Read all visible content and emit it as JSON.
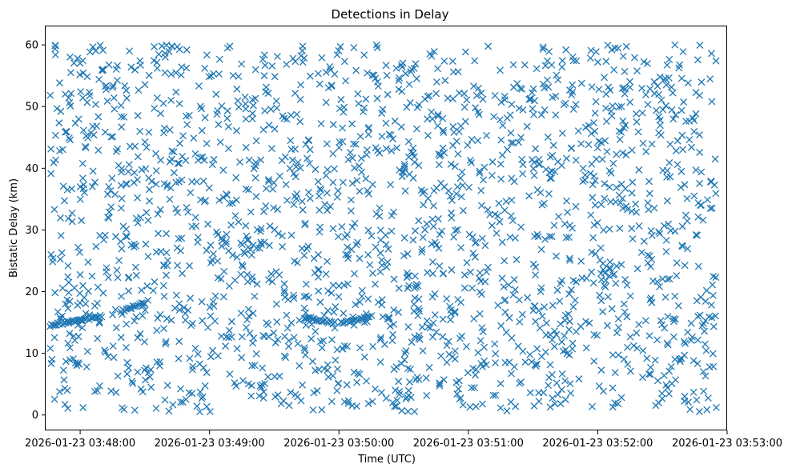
{
  "chart_data": {
    "type": "scatter",
    "title": "Detections in Delay",
    "xlabel": "Time (UTC)",
    "ylabel": "Bistatic Delay (km)",
    "marker": "x",
    "color": "#1f77b4",
    "grid": false,
    "x_ticks": [
      {
        "label": "2026-01-23 03:48:00",
        "t": "03:48:00"
      },
      {
        "label": "2026-01-23 03:49:00",
        "t": "03:49:00"
      },
      {
        "label": "2026-01-23 03:50:00",
        "t": "03:50:00"
      },
      {
        "label": "2026-01-23 03:51:00",
        "t": "03:51:00"
      },
      {
        "label": "2026-01-23 03:52:00",
        "t": "03:52:00"
      },
      {
        "label": "2026-01-23 03:53:00",
        "t": "03:53:00"
      }
    ],
    "x_range": [
      "03:47:44",
      "03:53:00"
    ],
    "y_ticks": [
      0,
      10,
      20,
      30,
      40,
      50,
      60
    ],
    "ylim": [
      -2.5,
      63
    ],
    "data_range": {
      "t_start": "03:47:46",
      "t_end": "03:52:55",
      "y_min": 0.5,
      "y_max": 60
    },
    "tracks": [
      {
        "t_start": "03:47:46",
        "t_end": "03:48:10",
        "y_start": 14.5,
        "y_end": 16.0
      },
      {
        "t_start": "03:48:19",
        "t_end": "03:48:30",
        "y_start": 16.8,
        "y_end": 18.2
      },
      {
        "t_start": "03:49:44",
        "t_end": "03:49:58",
        "y_start": 15.8,
        "y_end": 14.9
      },
      {
        "t_start": "03:50:01",
        "t_end": "03:50:14",
        "y_start": 14.9,
        "y_end": 15.8
      }
    ],
    "noise_points_count": 2000,
    "random_seed": 7
  }
}
